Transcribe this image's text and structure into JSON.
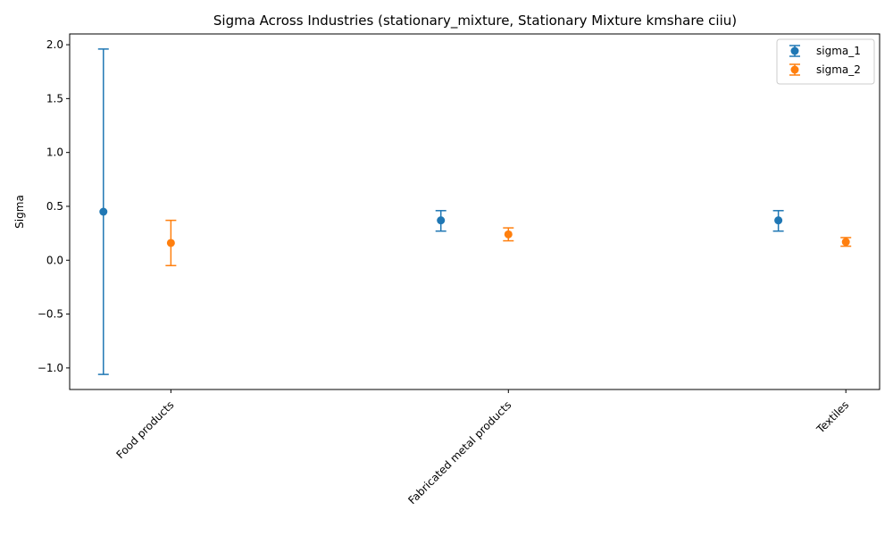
{
  "chart_data": {
    "type": "errorbar",
    "title": "Sigma Across Industries (stationary_mixture, Stationary Mixture kmshare ciiu)",
    "xlabel": "",
    "ylabel": "Sigma",
    "categories": [
      "Food products",
      "Fabricated metal products",
      "Textiles"
    ],
    "ylim": [
      -1.2,
      2.1
    ],
    "yticks": [
      -1.0,
      -0.5,
      0.0,
      0.5,
      1.0,
      1.5,
      2.0
    ],
    "ytick_labels": [
      "−1.0",
      "−0.5",
      "0.0",
      "0.5",
      "1.0",
      "1.5",
      "2.0"
    ],
    "legend_position": "top-right",
    "series": [
      {
        "name": "sigma_1",
        "color": "#1f77b4",
        "offset": -0.2,
        "values": [
          0.45,
          0.37,
          0.37
        ],
        "lower": [
          -1.06,
          0.27,
          0.27
        ],
        "upper": [
          1.96,
          0.46,
          0.46
        ]
      },
      {
        "name": "sigma_2",
        "color": "#ff7f0e",
        "offset": 0.0,
        "values": [
          0.16,
          0.24,
          0.17
        ],
        "lower": [
          -0.05,
          0.18,
          0.13
        ],
        "upper": [
          0.37,
          0.3,
          0.21
        ]
      }
    ]
  }
}
